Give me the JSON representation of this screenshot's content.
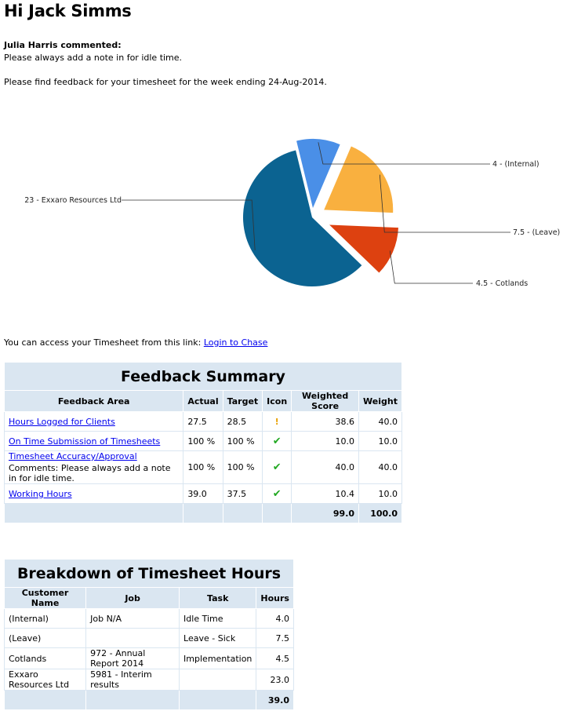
{
  "greeting": "Hi Jack Simms",
  "commenter": "Julia Harris commented:",
  "comment": "Please always add a note in for idle time.",
  "intro": "Please find feedback for your timesheet for the week ending 24-Aug-2014.",
  "chart_data": {
    "type": "pie",
    "slices": [
      {
        "label": "23 - Exxaro Resources Ltd",
        "value": 23,
        "color": "#0b6391"
      },
      {
        "label": "4 - (Internal)",
        "value": 4,
        "color": "#4a8fe7"
      },
      {
        "label": "7.5 - (Leave)",
        "value": 7.5,
        "color": "#f9b03f"
      },
      {
        "label": "4.5 - Cotlands",
        "value": 4.5,
        "color": "#dd4110"
      }
    ]
  },
  "access": {
    "text": "You can access your Timesheet from this link:",
    "link": "Login to Chase"
  },
  "feedback": {
    "title": "Feedback Summary",
    "headers": [
      "Feedback Area",
      "Actual",
      "Target",
      "Icon",
      "Weighted Score",
      "Weight"
    ],
    "rows": [
      {
        "area": "Hours Logged for Clients",
        "comment": "",
        "actual": "27.5",
        "target": "28.5",
        "icon": "!",
        "icon_name": "warning-icon",
        "score": "38.6",
        "weight": "40.0"
      },
      {
        "area": "On Time Submission of Timesheets",
        "comment": "",
        "actual": "100 %",
        "target": "100 %",
        "icon": "✔",
        "icon_name": "check-icon",
        "score": "10.0",
        "weight": "10.0"
      },
      {
        "area": "Timesheet Accuracy/Approval",
        "comment": "Comments: Please always add a note in for idle time.",
        "actual": "100 %",
        "target": "100 %",
        "icon": "✔",
        "icon_name": "check-icon",
        "score": "40.0",
        "weight": "40.0"
      },
      {
        "area": "Working Hours",
        "comment": "",
        "actual": "39.0",
        "target": "37.5",
        "icon": "✔",
        "icon_name": "check-icon",
        "score": "10.4",
        "weight": "10.0"
      }
    ],
    "total_score": "99.0",
    "total_weight": "100.0"
  },
  "breakdown": {
    "title": "Breakdown of Timesheet Hours",
    "headers": [
      "Customer Name",
      "Job",
      "Task",
      "Hours"
    ],
    "rows": [
      {
        "customer": "(Internal)",
        "job": "Job N/A",
        "task": "Idle Time",
        "hours": "4.0"
      },
      {
        "customer": "(Leave)",
        "job": "",
        "task": "Leave - Sick",
        "hours": "7.5"
      },
      {
        "customer": "Cotlands",
        "job": "972 - Annual Report 2014",
        "task": "Implementation",
        "hours": "4.5"
      },
      {
        "customer": "Exxaro Resources Ltd",
        "job": "5981 - Interim results",
        "task": "",
        "hours": "23.0"
      }
    ],
    "total_hours": "39.0"
  }
}
